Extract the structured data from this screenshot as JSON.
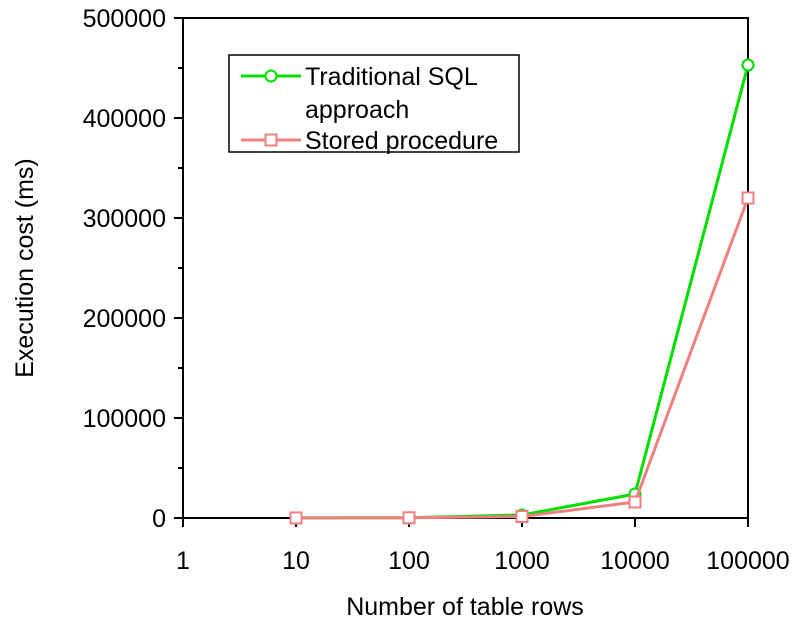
{
  "chart_data": {
    "type": "line",
    "title": "",
    "xlabel": "Number of table rows",
    "ylabel": "Execution cost (ms)",
    "x_scale": "log",
    "xlim": [
      1,
      100000
    ],
    "ylim": [
      0,
      500000
    ],
    "x_ticks": [
      "1",
      "10",
      "100",
      "1000",
      "10000",
      "100000"
    ],
    "y_ticks": [
      "0",
      "100000",
      "200000",
      "300000",
      "400000",
      "500000"
    ],
    "x": [
      10,
      100,
      1000,
      10000,
      100000
    ],
    "series": [
      {
        "name": "Traditional SQL approach",
        "name_lines": [
          "Traditional SQL",
          "approach"
        ],
        "values": [
          100,
          300,
          3000,
          24000,
          453000
        ],
        "color": "#00e000",
        "marker": "circle"
      },
      {
        "name": "Stored procedure",
        "name_lines": [
          "Stored procedure"
        ],
        "values": [
          80,
          200,
          1500,
          16000,
          320000
        ],
        "color": "#f08080",
        "marker": "square"
      }
    ],
    "grid": false,
    "legend": "top-left"
  }
}
